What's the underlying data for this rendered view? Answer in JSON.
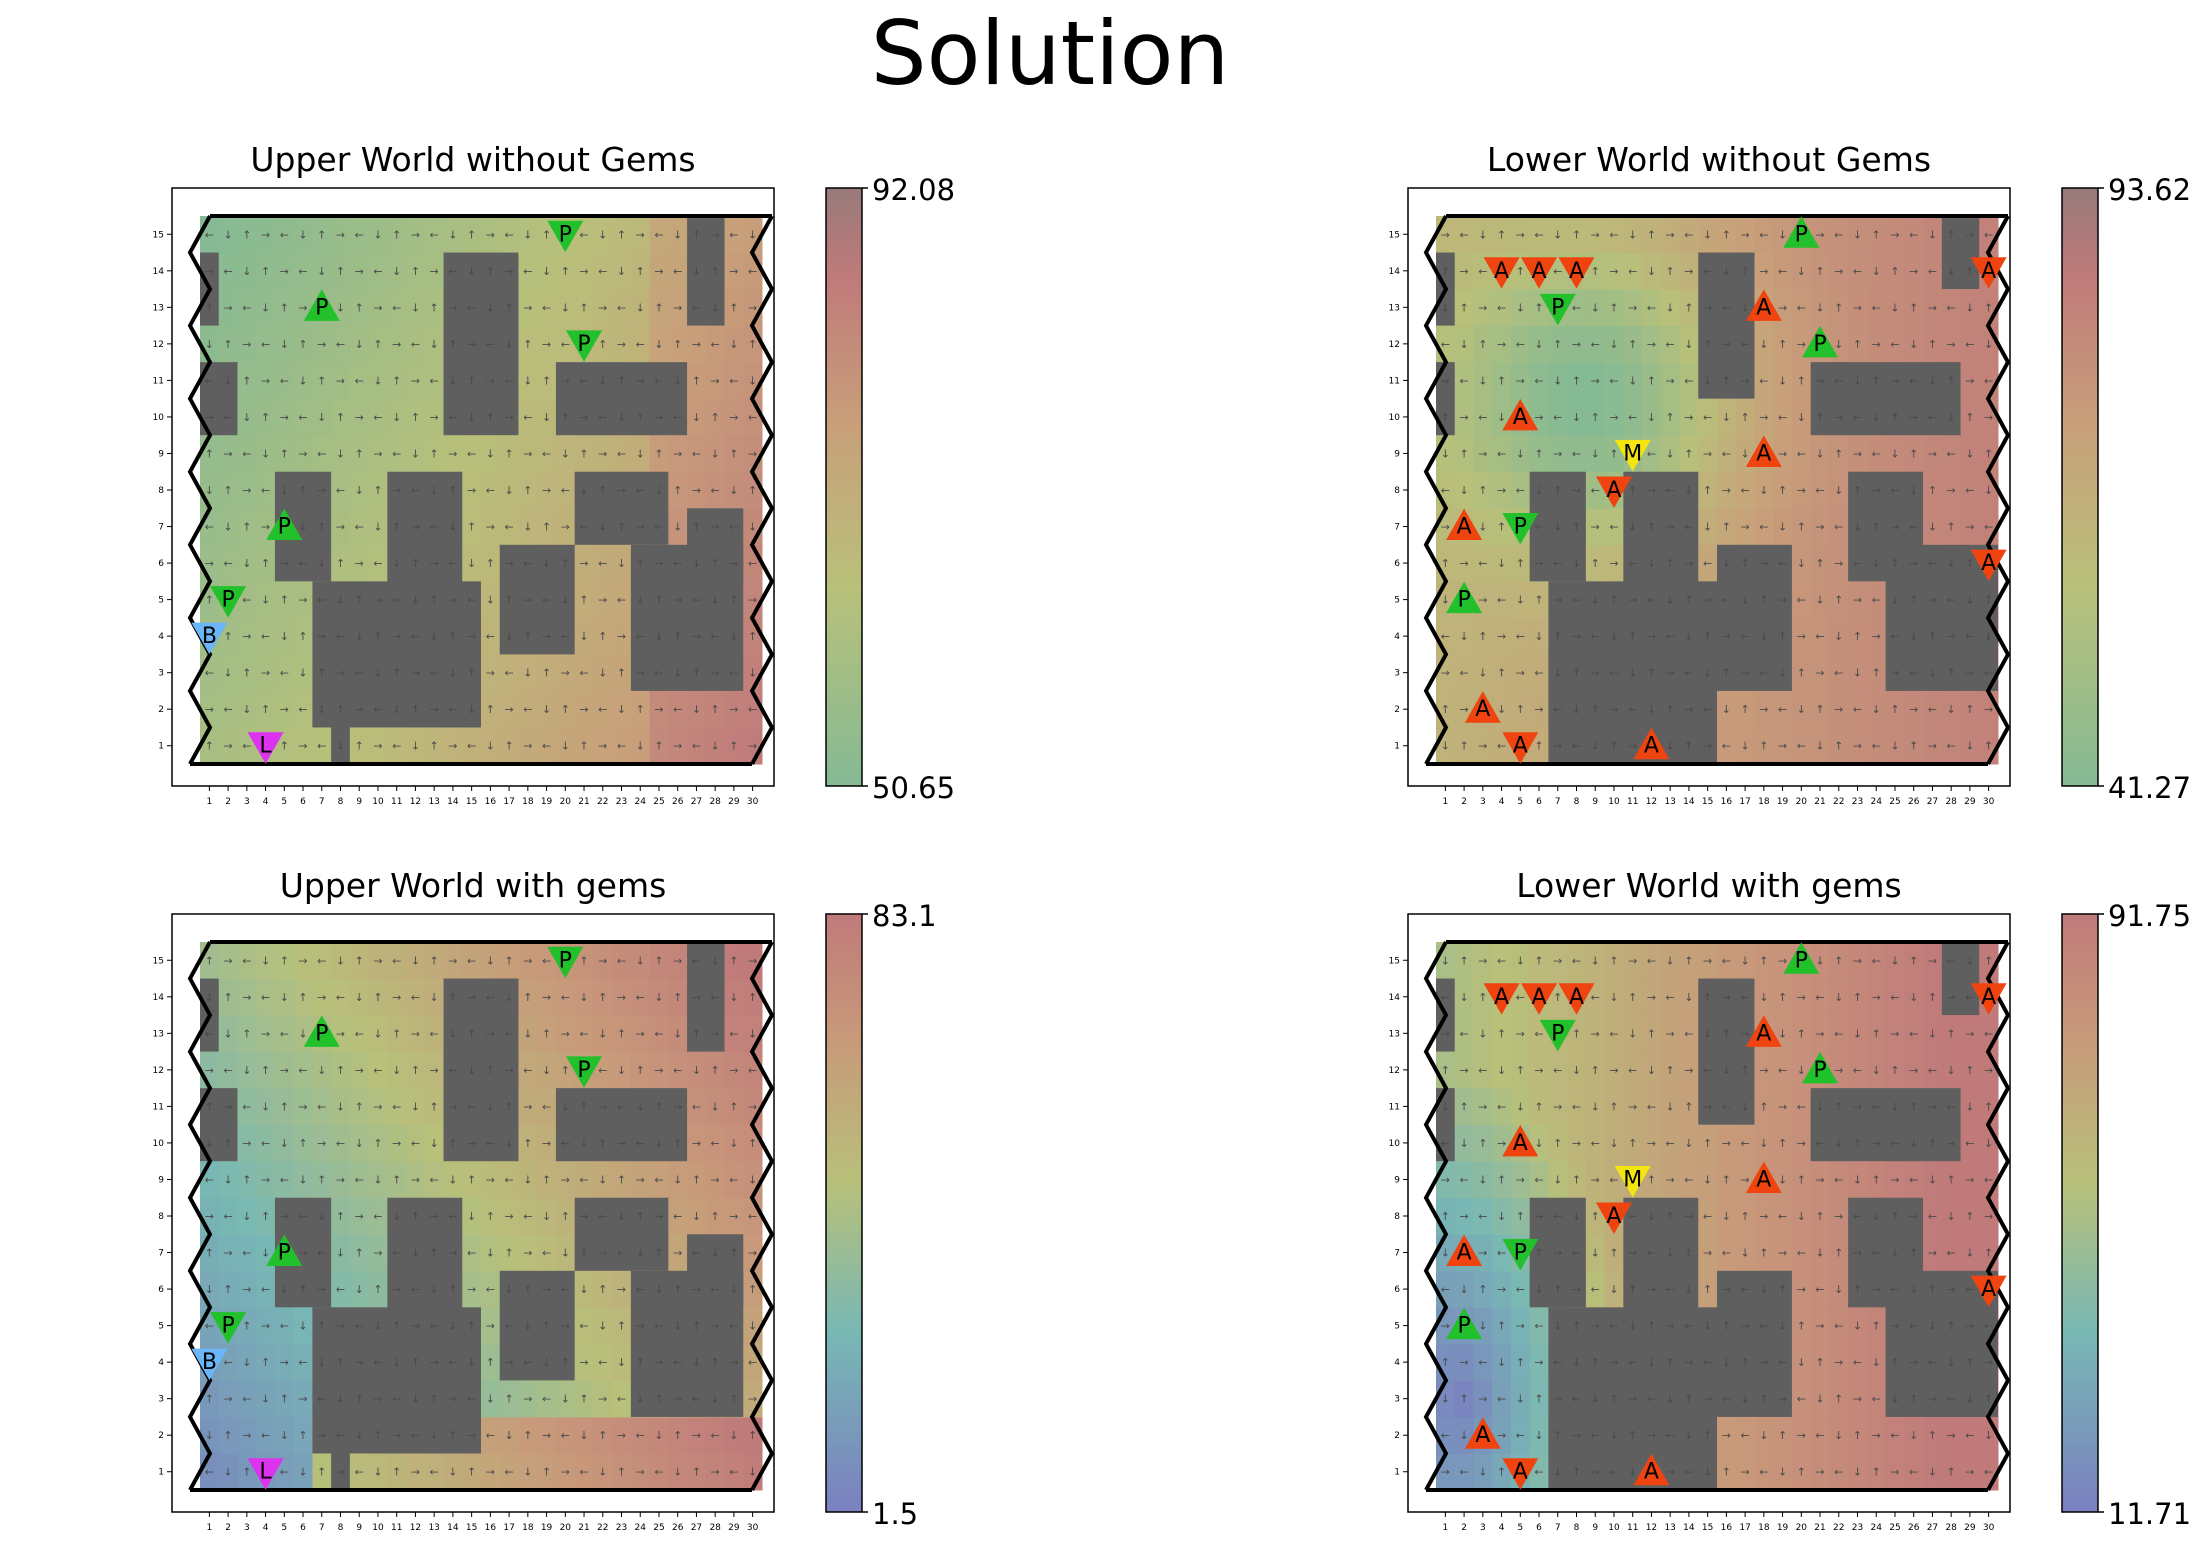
{
  "suptitle": "Solution",
  "grid": {
    "rows": 15,
    "cols": 30
  },
  "colors": {
    "wall": "#5f5f5f",
    "border": "#000000",
    "arrow": "#4a4a4a",
    "P": "#22c02a",
    "A": "#ef4410",
    "M": "#f4e410",
    "L": "#dd33ee",
    "B": "#6ab6f8"
  },
  "colormaps": {
    "upper": [
      [
        0,
        "#85ba94"
      ],
      [
        0.33,
        "#b8c07a"
      ],
      [
        0.6,
        "#c8a07a"
      ],
      [
        0.85,
        "#c07a7a"
      ],
      [
        1,
        "#987a7a"
      ]
    ],
    "lower": [
      [
        0,
        "#7a80c0"
      ],
      [
        0.3,
        "#78b8b4"
      ],
      [
        0.55,
        "#b8c07a"
      ],
      [
        0.8,
        "#c8987a"
      ],
      [
        1,
        "#c07a7a"
      ]
    ]
  },
  "chart_data": [
    {
      "type": "heatmap",
      "title": "Upper World without Gems",
      "colorbar": {
        "min": "50.65",
        "max": "92.08"
      },
      "x_ticks": [
        "1",
        "2",
        "3",
        "4",
        "5",
        "6",
        "7",
        "8",
        "9",
        "10",
        "11",
        "12",
        "13",
        "14",
        "15",
        "16",
        "17",
        "18",
        "19",
        "20",
        "21",
        "22",
        "23",
        "24",
        "25",
        "26",
        "27",
        "28",
        "29",
        "30"
      ],
      "y_ticks": [
        "1",
        "2",
        "3",
        "4",
        "5",
        "6",
        "7",
        "8",
        "9",
        "10",
        "11",
        "12",
        "13",
        "14",
        "15"
      ],
      "markers": [
        {
          "label": "P",
          "row": 15,
          "col": 20,
          "dir": "down",
          "type": "P"
        },
        {
          "label": "P",
          "row": 13,
          "col": 7,
          "dir": "up",
          "type": "P"
        },
        {
          "label": "P",
          "row": 12,
          "col": 21,
          "dir": "down",
          "type": "P"
        },
        {
          "label": "P",
          "row": 7,
          "col": 5,
          "dir": "up",
          "type": "P"
        },
        {
          "label": "P",
          "row": 5,
          "col": 2,
          "dir": "down",
          "type": "P"
        },
        {
          "label": "B",
          "row": 4,
          "col": 1,
          "dir": "down",
          "type": "B"
        },
        {
          "label": "L",
          "row": 1,
          "col": 4,
          "dir": "down",
          "type": "L"
        }
      ]
    },
    {
      "type": "heatmap",
      "title": "Lower World without Gems",
      "colorbar": {
        "min": "41.27",
        "max": "93.62"
      },
      "x_ticks": [
        "1",
        "2",
        "3",
        "4",
        "5",
        "6",
        "7",
        "8",
        "9",
        "10",
        "11",
        "12",
        "13",
        "14",
        "15",
        "16",
        "17",
        "18",
        "19",
        "20",
        "21",
        "22",
        "23",
        "24",
        "25",
        "26",
        "27",
        "28",
        "29",
        "30"
      ],
      "y_ticks": [
        "1",
        "2",
        "3",
        "4",
        "5",
        "6",
        "7",
        "8",
        "9",
        "10",
        "11",
        "12",
        "13",
        "14",
        "15"
      ],
      "markers": [
        {
          "label": "P",
          "row": 15,
          "col": 20,
          "dir": "up",
          "type": "P"
        },
        {
          "label": "A",
          "row": 14,
          "col": 4,
          "dir": "down",
          "type": "A"
        },
        {
          "label": "A",
          "row": 14,
          "col": 6,
          "dir": "down",
          "type": "A"
        },
        {
          "label": "A",
          "row": 14,
          "col": 8,
          "dir": "down",
          "type": "A"
        },
        {
          "label": "A",
          "row": 14,
          "col": 30,
          "dir": "down",
          "type": "A"
        },
        {
          "label": "P",
          "row": 13,
          "col": 7,
          "dir": "down",
          "type": "P"
        },
        {
          "label": "A",
          "row": 13,
          "col": 18,
          "dir": "up",
          "type": "A"
        },
        {
          "label": "P",
          "row": 12,
          "col": 21,
          "dir": "up",
          "type": "P"
        },
        {
          "label": "A",
          "row": 10,
          "col": 5,
          "dir": "up",
          "type": "A"
        },
        {
          "label": "M",
          "row": 9,
          "col": 11,
          "dir": "down",
          "type": "M"
        },
        {
          "label": "A",
          "row": 9,
          "col": 18,
          "dir": "up",
          "type": "A"
        },
        {
          "label": "A",
          "row": 8,
          "col": 10,
          "dir": "down",
          "type": "A"
        },
        {
          "label": "P",
          "row": 7,
          "col": 5,
          "dir": "down",
          "type": "P"
        },
        {
          "label": "A",
          "row": 7,
          "col": 2,
          "dir": "up",
          "type": "A"
        },
        {
          "label": "A",
          "row": 6,
          "col": 30,
          "dir": "down",
          "type": "A"
        },
        {
          "label": "P",
          "row": 5,
          "col": 2,
          "dir": "up",
          "type": "P"
        },
        {
          "label": "A",
          "row": 2,
          "col": 3,
          "dir": "up",
          "type": "A"
        },
        {
          "label": "A",
          "row": 1,
          "col": 5,
          "dir": "down",
          "type": "A"
        },
        {
          "label": "A",
          "row": 1,
          "col": 12,
          "dir": "up",
          "type": "A"
        }
      ]
    },
    {
      "type": "heatmap",
      "title": "Upper World with gems",
      "colorbar": {
        "min": "1.5",
        "max": "83.1"
      },
      "x_ticks": [
        "1",
        "2",
        "3",
        "4",
        "5",
        "6",
        "7",
        "8",
        "9",
        "10",
        "11",
        "12",
        "13",
        "14",
        "15",
        "16",
        "17",
        "18",
        "19",
        "20",
        "21",
        "22",
        "23",
        "24",
        "25",
        "26",
        "27",
        "28",
        "29",
        "30"
      ],
      "y_ticks": [
        "1",
        "2",
        "3",
        "4",
        "5",
        "6",
        "7",
        "8",
        "9",
        "10",
        "11",
        "12",
        "13",
        "14",
        "15"
      ],
      "markers": [
        {
          "label": "P",
          "row": 15,
          "col": 20,
          "dir": "down",
          "type": "P"
        },
        {
          "label": "P",
          "row": 13,
          "col": 7,
          "dir": "up",
          "type": "P"
        },
        {
          "label": "P",
          "row": 12,
          "col": 21,
          "dir": "down",
          "type": "P"
        },
        {
          "label": "P",
          "row": 7,
          "col": 5,
          "dir": "up",
          "type": "P"
        },
        {
          "label": "P",
          "row": 5,
          "col": 2,
          "dir": "down",
          "type": "P"
        },
        {
          "label": "B",
          "row": 4,
          "col": 1,
          "dir": "down",
          "type": "B"
        },
        {
          "label": "L",
          "row": 1,
          "col": 4,
          "dir": "down",
          "type": "L"
        }
      ]
    },
    {
      "type": "heatmap",
      "title": "Lower World with gems",
      "colorbar": {
        "min": "11.71",
        "max": "91.75"
      },
      "x_ticks": [
        "1",
        "2",
        "3",
        "4",
        "5",
        "6",
        "7",
        "8",
        "9",
        "10",
        "11",
        "12",
        "13",
        "14",
        "15",
        "16",
        "17",
        "18",
        "19",
        "20",
        "21",
        "22",
        "23",
        "24",
        "25",
        "26",
        "27",
        "28",
        "29",
        "30"
      ],
      "y_ticks": [
        "1",
        "2",
        "3",
        "4",
        "5",
        "6",
        "7",
        "8",
        "9",
        "10",
        "11",
        "12",
        "13",
        "14",
        "15"
      ],
      "markers": [
        {
          "label": "P",
          "row": 15,
          "col": 20,
          "dir": "up",
          "type": "P"
        },
        {
          "label": "A",
          "row": 14,
          "col": 4,
          "dir": "down",
          "type": "A"
        },
        {
          "label": "A",
          "row": 14,
          "col": 6,
          "dir": "down",
          "type": "A"
        },
        {
          "label": "A",
          "row": 14,
          "col": 8,
          "dir": "down",
          "type": "A"
        },
        {
          "label": "A",
          "row": 14,
          "col": 30,
          "dir": "down",
          "type": "A"
        },
        {
          "label": "P",
          "row": 13,
          "col": 7,
          "dir": "down",
          "type": "P"
        },
        {
          "label": "A",
          "row": 13,
          "col": 18,
          "dir": "up",
          "type": "A"
        },
        {
          "label": "P",
          "row": 12,
          "col": 21,
          "dir": "up",
          "type": "P"
        },
        {
          "label": "A",
          "row": 10,
          "col": 5,
          "dir": "up",
          "type": "A"
        },
        {
          "label": "M",
          "row": 9,
          "col": 11,
          "dir": "down",
          "type": "M"
        },
        {
          "label": "A",
          "row": 9,
          "col": 18,
          "dir": "up",
          "type": "A"
        },
        {
          "label": "A",
          "row": 8,
          "col": 10,
          "dir": "down",
          "type": "A"
        },
        {
          "label": "P",
          "row": 7,
          "col": 5,
          "dir": "down",
          "type": "P"
        },
        {
          "label": "A",
          "row": 7,
          "col": 2,
          "dir": "up",
          "type": "A"
        },
        {
          "label": "A",
          "row": 6,
          "col": 30,
          "dir": "down",
          "type": "A"
        },
        {
          "label": "P",
          "row": 5,
          "col": 2,
          "dir": "up",
          "type": "P"
        },
        {
          "label": "A",
          "row": 2,
          "col": 3,
          "dir": "up",
          "type": "A"
        },
        {
          "label": "A",
          "row": 1,
          "col": 5,
          "dir": "down",
          "type": "A"
        },
        {
          "label": "A",
          "row": 1,
          "col": 12,
          "dir": "up",
          "type": "A"
        }
      ]
    }
  ]
}
